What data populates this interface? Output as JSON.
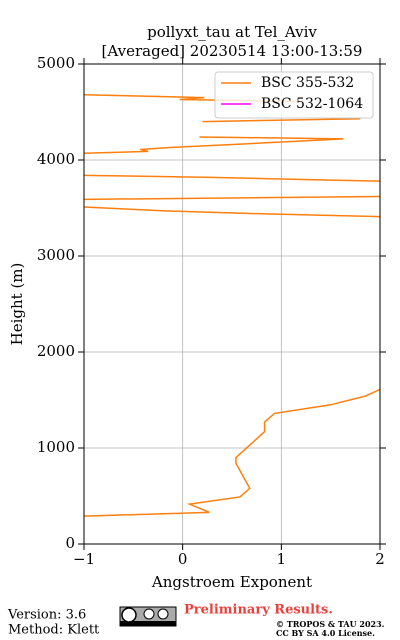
{
  "chart_data": {
    "type": "line",
    "orientation": "vertical",
    "title": "pollyxt_tau at Tel_Aviv",
    "subtitle": "[Averaged] 20230514 13:00-13:59",
    "xlabel": "Angstroem Exponent",
    "ylabel": "Height (m)",
    "y": [
      290,
      330,
      415,
      490,
      580,
      840,
      900,
      1170,
      1270,
      1360,
      1450,
      1540,
      1610,
      1700,
      3410,
      3440,
      3470,
      3510,
      3550,
      3590,
      3620,
      3700,
      3780,
      3790,
      3820,
      3840,
      3950,
      4070,
      4090,
      4110,
      4130,
      4160,
      4220,
      4240,
      4320,
      4400,
      4430,
      4520,
      4610,
      4630,
      4650,
      4680
    ],
    "series": [
      {
        "name": "BSC 355-532",
        "color": "#ff7f0e",
        "values": [
          -1,
          0.27,
          0.07,
          0.58,
          0.68,
          0.54,
          0.54,
          0.83,
          0.83,
          0.93,
          1.5,
          1.85,
          2.0,
          null,
          2.0,
          0.8,
          -0.18,
          -1,
          null,
          -1,
          2,
          null,
          2,
          1.5,
          0.22,
          -1,
          null,
          -1,
          -0.35,
          -0.43,
          -0.13,
          0.48,
          1.63,
          0.17,
          null,
          0.2,
          1.8,
          null,
          1.2,
          -0.03,
          0.22,
          -1
        ]
      },
      {
        "name": "BSC 532-1064",
        "color": "#ff00ff",
        "values": [
          null,
          null,
          null,
          null,
          null,
          null,
          null,
          null,
          null,
          null,
          null,
          null,
          null,
          null,
          null,
          null,
          null,
          null,
          null,
          null,
          null,
          null,
          null,
          null,
          null,
          null,
          null,
          null,
          null,
          null,
          null,
          null,
          null,
          null,
          null,
          null,
          null,
          null,
          null,
          null,
          null,
          null
        ]
      }
    ],
    "xlim": [
      -1,
      2
    ],
    "xticks": [
      {
        "value": -1,
        "label": "−1"
      },
      0,
      1,
      2
    ],
    "ylim": [
      0,
      5000
    ],
    "yticks": [
      0,
      1000,
      2000,
      3000,
      4000,
      5000
    ],
    "grid": true,
    "legend": "upper right"
  },
  "footer": {
    "version": "Version: 3.6",
    "method": "Method: Klett",
    "preliminary": "Preliminary Results.",
    "copyright": "© TROPOS & TAU 2023.",
    "license": "CC BY SA 4.0 License."
  }
}
